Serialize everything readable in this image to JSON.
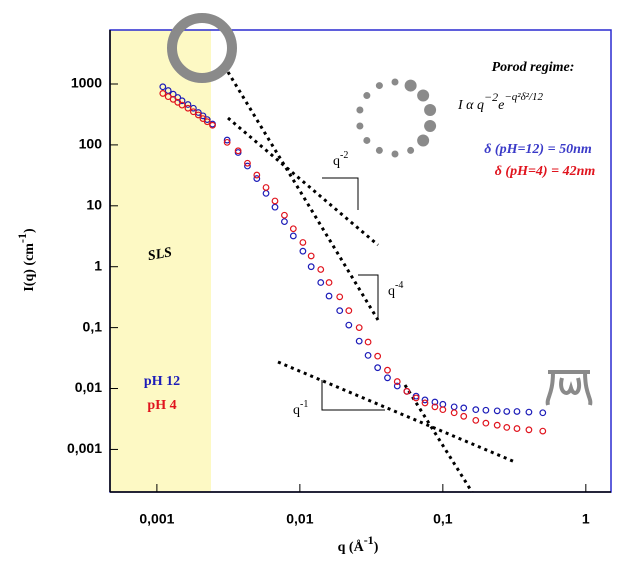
{
  "chart_data": {
    "type": "scatter",
    "xlabel": {
      "text": "q (Å",
      "sup": "-1",
      "end": ")"
    },
    "ylabel": {
      "text": "I(q) (cm",
      "sup": "-1",
      "end": ")"
    },
    "log_x": true,
    "log_y": true,
    "xlim": [
      0.00047,
      1.5
    ],
    "ylim": [
      0.0002,
      7700
    ],
    "xticks": [
      {
        "value": 0.001,
        "label": "0,001"
      },
      {
        "value": 0.01,
        "label": "0,01"
      },
      {
        "value": 0.1,
        "label": "0,1"
      },
      1
    ],
    "yticks": [
      {
        "value": 0.001,
        "label": "0,001"
      },
      {
        "value": 0.01,
        "label": "0,01"
      },
      {
        "value": 0.1,
        "label": "0,1"
      },
      1,
      10,
      100,
      1000
    ],
    "series": [
      {
        "name": "pH 12",
        "color": "#1c1cb8",
        "x": [
          0.0011,
          0.0012,
          0.0013,
          0.0014,
          0.0015,
          0.00165,
          0.0018,
          0.00195,
          0.0021,
          0.00225,
          0.00245,
          0.0031,
          0.0037,
          0.0043,
          0.005,
          0.0058,
          0.0067,
          0.0078,
          0.009,
          0.0105,
          0.012,
          0.014,
          0.016,
          0.019,
          0.022,
          0.026,
          0.03,
          0.035,
          0.041,
          0.048,
          0.056,
          0.065,
          0.075,
          0.088,
          0.1,
          0.12,
          0.14,
          0.17,
          0.2,
          0.24,
          0.28,
          0.33,
          0.4,
          0.5
        ],
        "values": [
          900,
          780,
          680,
          600,
          530,
          460,
          400,
          340,
          300,
          260,
          220,
          120,
          75,
          45,
          28,
          16,
          9.5,
          5.5,
          3.2,
          1.8,
          1,
          0.55,
          0.33,
          0.19,
          0.11,
          0.06,
          0.035,
          0.022,
          0.015,
          0.011,
          0.009,
          0.0075,
          0.0065,
          0.006,
          0.0055,
          0.005,
          0.0048,
          0.0045,
          0.0044,
          0.0043,
          0.0042,
          0.0042,
          0.0041,
          0.004
        ]
      },
      {
        "name": "pH 4",
        "color": "#e0141e",
        "x": [
          0.0011,
          0.0012,
          0.0013,
          0.0014,
          0.0015,
          0.00165,
          0.0018,
          0.00195,
          0.0021,
          0.00225,
          0.00245,
          0.0031,
          0.0037,
          0.0043,
          0.005,
          0.0058,
          0.0067,
          0.0078,
          0.009,
          0.0105,
          0.012,
          0.014,
          0.016,
          0.019,
          0.022,
          0.026,
          0.03,
          0.035,
          0.041,
          0.048,
          0.056,
          0.065,
          0.075,
          0.088,
          0.1,
          0.12,
          0.14,
          0.17,
          0.2,
          0.24,
          0.28,
          0.33,
          0.4,
          0.5
        ],
        "values": [
          700,
          620,
          560,
          500,
          450,
          400,
          350,
          310,
          270,
          240,
          210,
          110,
          80,
          50,
          32,
          20,
          12,
          7,
          4.2,
          2.5,
          1.5,
          0.9,
          0.55,
          0.32,
          0.19,
          0.1,
          0.058,
          0.034,
          0.02,
          0.013,
          0.009,
          0.007,
          0.0058,
          0.005,
          0.0045,
          0.004,
          0.0035,
          0.003,
          0.0027,
          0.0025,
          0.0023,
          0.0022,
          0.0021,
          0.002
        ]
      }
    ],
    "region_label": "SLS",
    "porod_title": "Porod regime:",
    "formula": {
      "lead": "I α q",
      "exp1": "−2",
      "e": "e",
      "exp2": "−q²δ²/12"
    },
    "delta_lines": [
      "δ (pH=12) = 50nm",
      "δ (pH=4) = 42nm"
    ],
    "slope_labels": [
      {
        "base": "q",
        "exp": "-2"
      },
      {
        "base": "q",
        "exp": "-4"
      },
      {
        "base": "q",
        "exp": "-1"
      }
    ]
  }
}
